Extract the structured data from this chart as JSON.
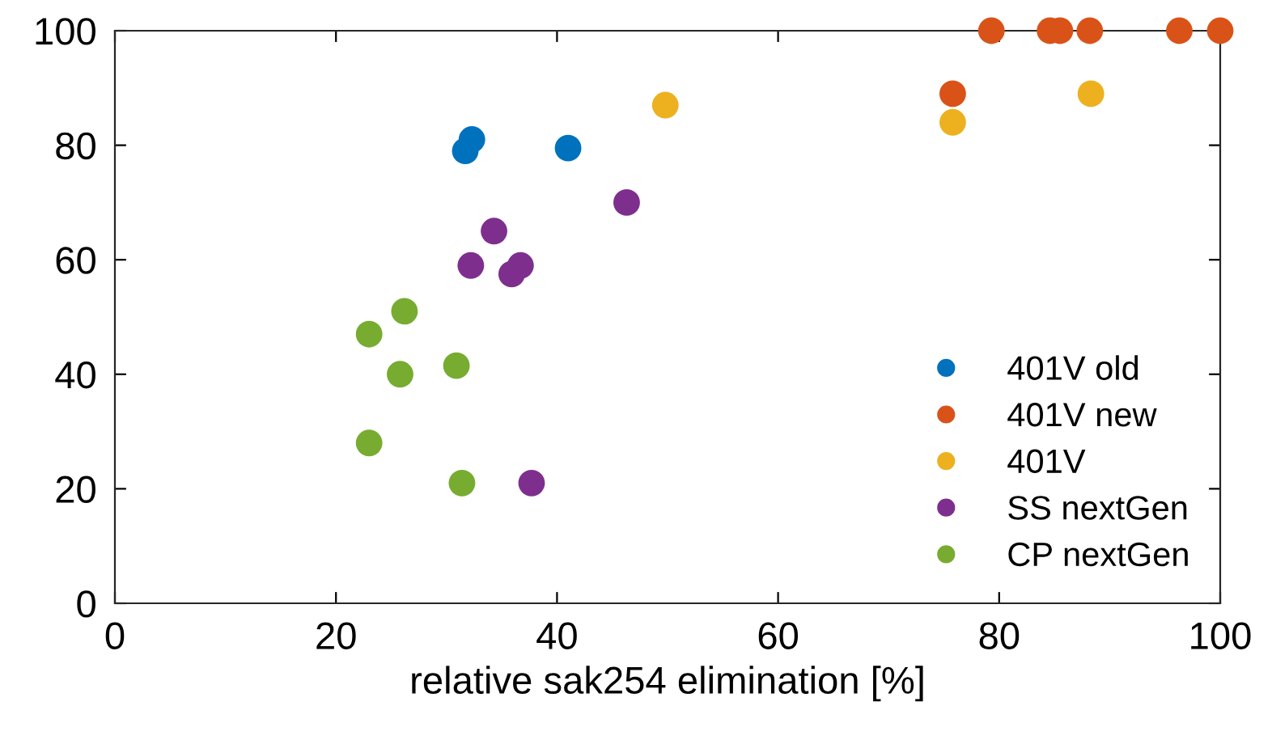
{
  "chart_data": {
    "type": "scatter",
    "xlabel": "relative sak254 elimination [%]",
    "xlim": [
      0,
      100
    ],
    "ylim": [
      0,
      100
    ],
    "xticks": [
      0,
      20,
      40,
      60,
      80,
      100
    ],
    "yticks": [
      0,
      20,
      40,
      60,
      80,
      100
    ],
    "grid": false,
    "legend": "bottom right",
    "marker": "circle",
    "series": [
      {
        "name": "401V old",
        "color": "#0072bd",
        "x": [
          31.7,
          32.3,
          41
        ],
        "values": [
          79,
          81,
          79.5
        ]
      },
      {
        "name": "401V new",
        "color": "#d95319",
        "x": [
          75.8,
          79.3,
          84.6,
          85.5,
          88.2,
          96.3,
          100
        ],
        "values": [
          89,
          100,
          100,
          100,
          100,
          100,
          100
        ]
      },
      {
        "name": "401V",
        "color": "#edb120",
        "x": [
          49.8,
          75.8,
          88.3
        ],
        "values": [
          87,
          84,
          89
        ]
      },
      {
        "name": "SS nextGen",
        "color": "#7e2f8e",
        "x": [
          32.2,
          34.3,
          35.9,
          36.7,
          46.3,
          37.7
        ],
        "values": [
          59,
          65,
          57.5,
          59,
          70,
          21
        ]
      },
      {
        "name": "CP nextGen",
        "color": "#77ac30",
        "x": [
          23,
          26.2,
          25.8,
          30.9,
          23,
          31.4
        ],
        "values": [
          47,
          51,
          40,
          41.5,
          28,
          21
        ]
      }
    ]
  }
}
